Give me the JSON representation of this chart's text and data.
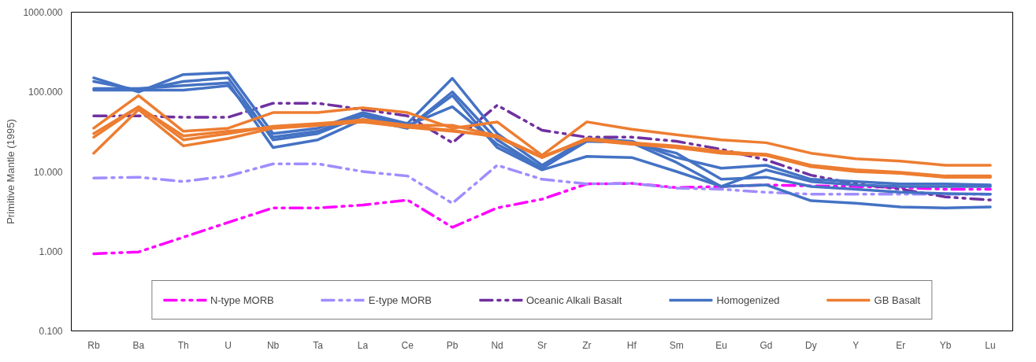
{
  "chart_data": {
    "type": "line",
    "ylabel": "Primitive Mantle (1995)",
    "log": "y",
    "grid": false,
    "legend": "bottom",
    "marker": "none",
    "categories": [
      "Rb",
      "Ba",
      "Th",
      "U",
      "Nb",
      "Ta",
      "La",
      "Ce",
      "Pb",
      "Nd",
      "Sr",
      "Zr",
      "Hf",
      "Sm",
      "Eu",
      "Gd",
      "Dy",
      "Y",
      "Er",
      "Yb",
      "Lu"
    ],
    "ylim": [
      0.1,
      1000
    ],
    "yticks": [
      {
        "value": 0.1,
        "label": "0.100"
      },
      {
        "value": 1,
        "label": "1.000"
      },
      {
        "value": 10,
        "label": "10.000"
      },
      {
        "value": 100,
        "label": "100.000"
      },
      {
        "value": 1000,
        "label": "1000.000"
      }
    ],
    "series": [
      {
        "name": "N-type MORB",
        "color": "#ff00ff",
        "line_style": "dashed",
        "values": [
          0.93,
          0.98,
          1.5,
          2.3,
          3.5,
          3.5,
          3.8,
          4.4,
          2.0,
          3.5,
          4.5,
          7.0,
          7.1,
          6.3,
          6.5,
          6.8,
          6.6,
          6.5,
          6.3,
          6.0,
          6.0
        ]
      },
      {
        "name": "E-type MORB",
        "color": "#a18cff",
        "line_style": "dashed",
        "values": [
          8.3,
          8.5,
          7.5,
          8.8,
          12.5,
          12.5,
          10,
          8.8,
          4.0,
          12,
          8,
          7,
          7.1,
          6.2,
          6.0,
          5.5,
          5.2,
          5.2,
          5.2,
          5.2,
          5.2
        ]
      },
      {
        "name": "Oceanic Alkali Basalt",
        "color": "#7030a0",
        "line_style": "dashed",
        "values": [
          50,
          50,
          48,
          48,
          72,
          72,
          60,
          50,
          23,
          68,
          33,
          27,
          27,
          24,
          19,
          14,
          9,
          7,
          6,
          4.8,
          4.4
        ]
      },
      {
        "name": "Homogenized",
        "color": "#4472c4",
        "line_style": "solid",
        "values": [
          150,
          100,
          165,
          175,
          30,
          35,
          55,
          40,
          148,
          30,
          12,
          26,
          24,
          15,
          11,
          12,
          8,
          7.5,
          7,
          7,
          6.8
        ]
      },
      {
        "color": "#4472c4",
        "line_style": "solid",
        "values": [
          135,
          105,
          135,
          150,
          25,
          30,
          50,
          35,
          100,
          25,
          11,
          24,
          23,
          13,
          6.5,
          10.5,
          7.5,
          6.8,
          6.5,
          6.5,
          6.5
        ]
      },
      {
        "color": "#4472c4",
        "line_style": "solid",
        "values": [
          110,
          110,
          120,
          130,
          20,
          25,
          45,
          35,
          90,
          20,
          10.5,
          15.5,
          15,
          10,
          6.5,
          6.8,
          4.3,
          4.0,
          3.6,
          3.5,
          3.6
        ]
      },
      {
        "color": "#4472c4",
        "line_style": "solid",
        "values": [
          105,
          105,
          105,
          120,
          27,
          32,
          52,
          38,
          65,
          22,
          11,
          25,
          23,
          17,
          8,
          8.5,
          6.5,
          6,
          5.5,
          5.3,
          5.2
        ]
      },
      {
        "name": "GB Basalt",
        "color": "#ed7d31",
        "line_style": "solid",
        "values": [
          35,
          90,
          32,
          35,
          55,
          55,
          63,
          55,
          35,
          42,
          16,
          42,
          34,
          29,
          25,
          23,
          17,
          14.5,
          13.5,
          12,
          12
        ]
      },
      {
        "color": "#ed7d31",
        "line_style": "solid",
        "values": [
          30,
          65,
          28,
          32,
          36,
          38,
          45,
          38,
          38,
          28,
          15,
          26,
          23,
          20,
          17.5,
          16.5,
          12,
          10.5,
          9.8,
          8.8,
          8.8
        ]
      },
      {
        "color": "#ed7d31",
        "line_style": "solid",
        "values": [
          27,
          65,
          25,
          30,
          37,
          40,
          44,
          37,
          33,
          27,
          15,
          25,
          22,
          20,
          17,
          16,
          11.5,
          10,
          9.5,
          8.5,
          8.5
        ]
      },
      {
        "color": "#ed7d31",
        "line_style": "solid",
        "values": [
          17,
          60,
          21,
          26,
          35,
          38,
          42,
          36,
          32,
          28,
          15.5,
          25,
          23,
          21,
          18,
          16,
          11.8,
          10.2,
          9.6,
          8.6,
          8.6
        ]
      }
    ]
  }
}
